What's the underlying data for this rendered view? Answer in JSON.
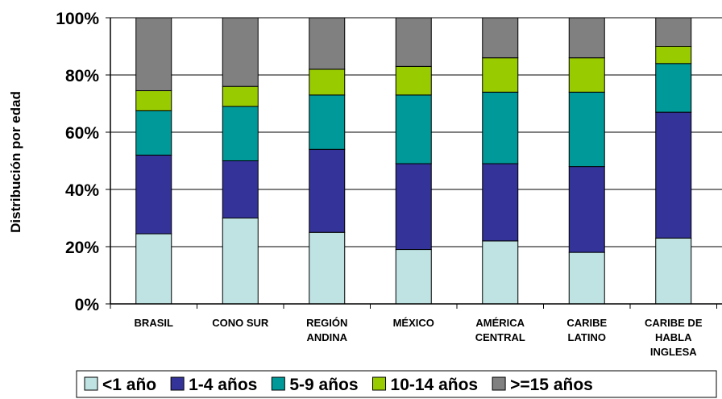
{
  "chart_data": {
    "type": "bar",
    "stacked": true,
    "xlabel": "",
    "ylabel": "Distribución por edad",
    "ylim": [
      0,
      100
    ],
    "yticks": [
      "0%",
      "20%",
      "40%",
      "60%",
      "80%",
      "100%"
    ],
    "categories": [
      [
        "BRASIL"
      ],
      [
        "CONO SUR"
      ],
      [
        "REGIÓN",
        "ANDINA"
      ],
      [
        "MÉXICO"
      ],
      [
        "AMÉRICA",
        "CENTRAL"
      ],
      [
        "CARIBE",
        "LATINO"
      ],
      [
        "CARIBE DE",
        "HABLA",
        "INGLESA"
      ]
    ],
    "series": [
      {
        "name": "<1 año",
        "color": "#bfe3e3",
        "values": [
          24.5,
          30,
          25,
          19,
          22,
          18,
          23
        ]
      },
      {
        "name": "1-4 años",
        "color": "#333399",
        "values": [
          27.5,
          20,
          29,
          30,
          27,
          30,
          44
        ]
      },
      {
        "name": "5-9 años",
        "color": "#009999",
        "values": [
          15.5,
          19,
          19,
          24,
          25,
          26,
          17
        ]
      },
      {
        "name": "10-14 años",
        "color": "#99cc00",
        "values": [
          7,
          7,
          9,
          10,
          12,
          12,
          6
        ]
      },
      {
        "name": ">=15 años",
        "color": "#808080",
        "values": [
          25.5,
          24,
          18,
          17,
          14,
          14,
          10
        ]
      }
    ],
    "grid": true,
    "legend_position": "bottom"
  }
}
